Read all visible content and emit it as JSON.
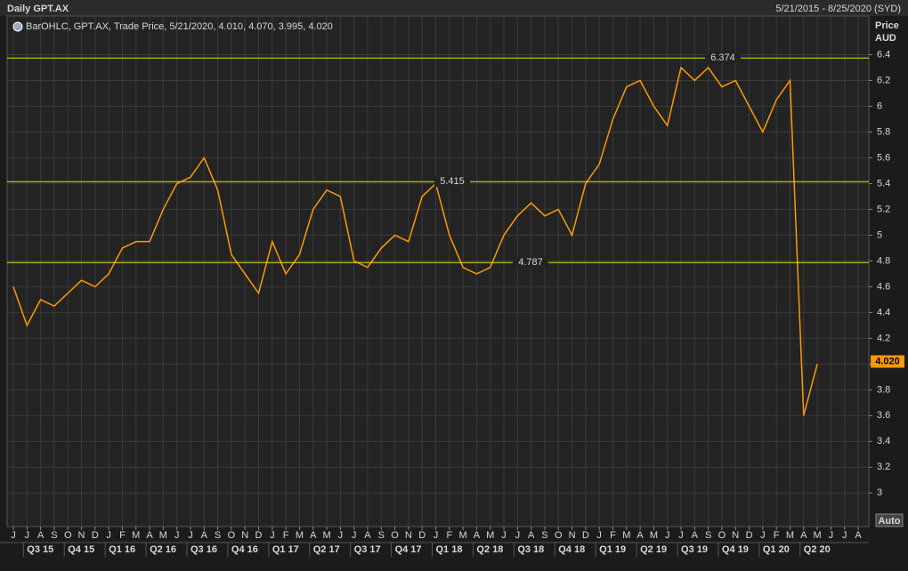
{
  "chart_data": {
    "type": "line",
    "title": "Daily GPT.AX",
    "date_range": "5/21/2015 - 8/25/2020 (SYD)",
    "legend_text": "BarOHLC, GPT.AX, Trade Price, 5/21/2020, 4.010, 4.070, 3.995, 4.020",
    "y_axis_title": "Price",
    "y_axis_unit": "AUD",
    "scale_button": "Auto",
    "categories": [
      "J",
      "J",
      "A",
      "S",
      "O",
      "N",
      "D",
      "J",
      "F",
      "M",
      "A",
      "M",
      "J",
      "J",
      "A",
      "S",
      "O",
      "N",
      "D",
      "J",
      "F",
      "M",
      "A",
      "M",
      "J",
      "J",
      "A",
      "S",
      "O",
      "N",
      "D",
      "J",
      "F",
      "M",
      "A",
      "M",
      "J",
      "J",
      "A",
      "S",
      "O",
      "N",
      "D",
      "J",
      "F",
      "M",
      "A",
      "M",
      "J",
      "J",
      "A",
      "S",
      "O",
      "N",
      "D",
      "J",
      "F",
      "M",
      "A",
      "M",
      "J",
      "J",
      "A"
    ],
    "quarters": [
      "Q3 15",
      "Q4 15",
      "Q1 16",
      "Q2 16",
      "Q3 16",
      "Q4 16",
      "Q1 17",
      "Q2 17",
      "Q3 17",
      "Q4 17",
      "Q1 18",
      "Q2 18",
      "Q3 18",
      "Q4 18",
      "Q1 19",
      "Q2 19",
      "Q3 19",
      "Q4 19",
      "Q1 20",
      "Q2 20"
    ],
    "series": [
      {
        "name": "GPT.AX",
        "color": "#ff9900",
        "values": [
          4.6,
          4.3,
          4.5,
          4.45,
          4.55,
          4.65,
          4.6,
          4.7,
          4.9,
          4.95,
          4.95,
          5.2,
          5.4,
          5.45,
          5.6,
          5.35,
          4.85,
          4.7,
          4.55,
          4.95,
          4.7,
          4.85,
          5.2,
          5.35,
          5.3,
          4.8,
          4.75,
          4.9,
          5.0,
          4.95,
          5.3,
          5.4,
          5.0,
          4.75,
          4.7,
          4.75,
          5.0,
          5.15,
          5.25,
          5.15,
          5.2,
          5.0,
          5.4,
          5.55,
          5.9,
          6.15,
          6.2,
          6.0,
          5.85,
          6.3,
          6.2,
          6.3,
          6.15,
          6.2,
          6.0,
          5.8,
          6.05,
          6.2,
          3.6,
          4.0,
          null,
          null,
          null
        ]
      }
    ],
    "last_price": {
      "value": 4.02,
      "label": "4.020"
    },
    "hlines": [
      6.374,
      5.415,
      4.787
    ],
    "hline_color": "#e6e600",
    "ylim": [
      2.74,
      6.7
    ],
    "yticks": [
      3,
      3.2,
      3.4,
      3.6,
      3.8,
      4,
      4.2,
      4.4,
      4.6,
      4.8,
      5,
      5.2,
      5.4,
      5.6,
      5.8,
      6,
      6.2,
      6.4
    ],
    "grid": true
  }
}
